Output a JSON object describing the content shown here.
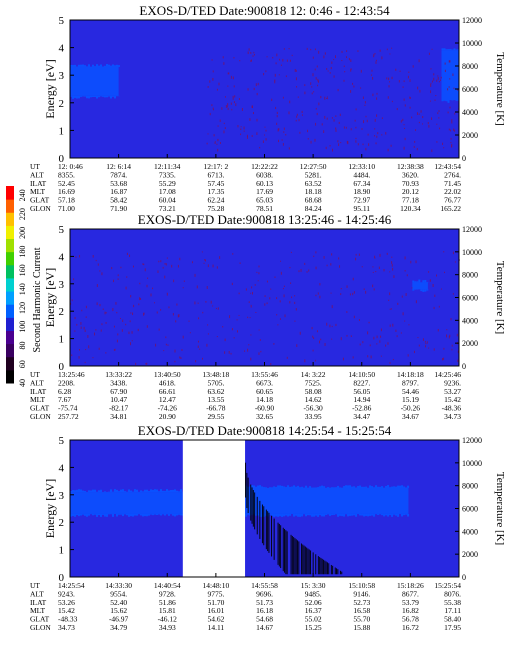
{
  "colorbar": {
    "label": "Second Harmonic Current",
    "ticks": [
      "40",
      "60",
      "80",
      "100",
      "120",
      "140",
      "160",
      "180",
      "200",
      "220",
      "240"
    ],
    "min": 40,
    "max": 250,
    "colors": [
      "#000000",
      "#200020",
      "#3a0060",
      "#4a0090",
      "#2020d0",
      "#0060ff",
      "#00a0ff",
      "#00d0d0",
      "#00c060",
      "#40d000",
      "#a0e000",
      "#f0f000",
      "#ffc000",
      "#ff6000",
      "#ff0000"
    ]
  },
  "chart_data": [
    {
      "type": "heatmap",
      "title": "EXOS-D/TED   Date:900818   12: 0:46 - 12:43:54",
      "ylabel": "Energy [eV]",
      "y2label": "Temperature [K]",
      "ylim": [
        0,
        5
      ],
      "yticks": [
        "0",
        "1",
        "2",
        "3",
        "4",
        "5"
      ],
      "y2lim": [
        0,
        12000
      ],
      "y2ticks": [
        "0",
        "2000",
        "4000",
        "6000",
        "8000",
        "10000",
        "12000"
      ],
      "background_color": "#2828e0",
      "features": [
        {
          "kind": "band",
          "t": [
            0,
            0.125
          ],
          "e": [
            2.25,
            3.3
          ],
          "color": "#0a50ff"
        },
        {
          "kind": "band",
          "t": [
            0.955,
            1.0
          ],
          "e": [
            2.1,
            3.9
          ],
          "color": "#0a50ff"
        },
        {
          "kind": "speckle",
          "t": [
            0.35,
            1.0
          ],
          "e": [
            0.3,
            4.0
          ],
          "density": 0.55,
          "color": "#7a1060"
        }
      ],
      "xaxis": {
        "row_labels": [
          "UT",
          "ALT",
          "ILAT",
          "MLT",
          "GLAT",
          "GLON"
        ],
        "columns": [
          [
            "12: 0:46",
            "8355.",
            "52.45",
            "16.69",
            "57.18",
            "71.00"
          ],
          [
            "12: 6:14",
            "7874.",
            "53.68",
            "16.87",
            "58.42",
            "71.90"
          ],
          [
            "12:11:34",
            "7335.",
            "55.29",
            "17.08",
            "60.04",
            "73.21"
          ],
          [
            "12:17: 2",
            "6713.",
            "57.45",
            "17.35",
            "62.24",
            "75.28"
          ],
          [
            "12:22:22",
            "6038.",
            "60.13",
            "17.69",
            "65.03",
            "78.51"
          ],
          [
            "12:27:50",
            "5281.",
            "63.52",
            "18.18",
            "68.68",
            "84.24"
          ],
          [
            "12:33:10",
            "4484.",
            "67.34",
            "18.90",
            "72.97",
            "95.11"
          ],
          [
            "12:38:38",
            "3620.",
            "70.93",
            "20.12",
            "77.18",
            "120.34"
          ],
          [
            "12:43:54",
            "2764.",
            "71.45",
            "22.02",
            "76.77",
            "165.22"
          ]
        ]
      }
    },
    {
      "type": "heatmap",
      "title": "EXOS-D/TED   Date:900818   13:25:46 - 14:25:46",
      "ylabel": "Energy [eV]",
      "y2label": "Temperature [K]",
      "ylim": [
        0,
        5
      ],
      "yticks": [
        "0",
        "1",
        "2",
        "3",
        "4",
        "5"
      ],
      "y2lim": [
        0,
        12000
      ],
      "y2ticks": [
        "0",
        "2000",
        "4000",
        "6000",
        "8000",
        "10000",
        "12000"
      ],
      "background_color": "#2828e0",
      "features": [
        {
          "kind": "speckle",
          "t": [
            0.0,
            1.0
          ],
          "e": [
            0.1,
            4.2
          ],
          "density": 0.35,
          "color": "#7a1060"
        },
        {
          "kind": "band",
          "t": [
            0.88,
            0.92
          ],
          "e": [
            2.8,
            3.05
          ],
          "color": "#0a50ff"
        }
      ],
      "xaxis": {
        "row_labels": [
          "UT",
          "ALT",
          "ILAT",
          "MLT",
          "GLAT",
          "GLON"
        ],
        "columns": [
          [
            "13:25:46",
            "2208.",
            "6.28",
            "7.67",
            "-75.74",
            "257.72"
          ],
          [
            "13:33:22",
            "3438.",
            "67.90",
            "10.47",
            "-82.17",
            "34.81"
          ],
          [
            "13:40:50",
            "4618.",
            "66.61",
            "12.47",
            "-74.26",
            "20.90"
          ],
          [
            "13:48:18",
            "5705.",
            "63.62",
            "13.55",
            "-66.78",
            "29.55"
          ],
          [
            "13:55:46",
            "6673.",
            "60.65",
            "14.18",
            "-60.90",
            "32.65"
          ],
          [
            "14: 3:22",
            "7525.",
            "58.08",
            "14.62",
            "-56.30",
            "33.95"
          ],
          [
            "14:10:50",
            "8227.",
            "56.05",
            "14.94",
            "-52.86",
            "34.47"
          ],
          [
            "14:18:18",
            "8797.",
            "54.46",
            "15.19",
            "-50.26",
            "34.67"
          ],
          [
            "14:25:46",
            "9236.",
            "53.27",
            "15.42",
            "-48.36",
            "34.73"
          ]
        ]
      }
    },
    {
      "type": "heatmap",
      "title": "EXOS-D/TED   Date:900818   14:25:54 - 15:25:54",
      "ylabel": "Energy [eV]",
      "y2label": "Temperature [K]",
      "ylim": [
        0,
        5
      ],
      "yticks": [
        "0",
        "1",
        "2",
        "3",
        "4",
        "5"
      ],
      "y2lim": [
        0,
        12000
      ],
      "y2ticks": [
        "0",
        "2000",
        "4000",
        "6000",
        "8000",
        "10000",
        "12000"
      ],
      "background_color": "#2828e0",
      "features": [
        {
          "kind": "band",
          "t": [
            0.0,
            0.29
          ],
          "e": [
            2.3,
            3.1
          ],
          "color": "#0a50ff"
        },
        {
          "kind": "band",
          "t": [
            0.45,
            0.87
          ],
          "e": [
            2.3,
            3.25
          ],
          "color": "#0a50ff"
        },
        {
          "kind": "gap",
          "t": [
            0.29,
            0.45
          ]
        },
        {
          "kind": "dispersion",
          "t": [
            0.45,
            0.7
          ],
          "e_start": 4.1,
          "e_end": 0.1,
          "color": "#000000"
        }
      ],
      "xaxis": {
        "row_labels": [
          "UT",
          "ALT",
          "ILAT",
          "MLT",
          "GLAT",
          "GLON"
        ],
        "columns": [
          [
            "14:25:54",
            "9243.",
            "53.26",
            "15.42",
            "-48.33",
            "34.73"
          ],
          [
            "14:33:30",
            "9554.",
            "52.40",
            "15.62",
            "-46.97",
            "34.79"
          ],
          [
            "14:40:54",
            "9728.",
            "51.86",
            "15.81",
            "-46.12",
            "34.93"
          ],
          [
            "14:48:10",
            "9775.",
            "51.70",
            "16.01",
            "54.62",
            "14.11"
          ],
          [
            "14:55:58",
            "9696.",
            "51.73",
            "16.18",
            "54.68",
            "14.67"
          ],
          [
            "15: 3:30",
            "9485.",
            "52.06",
            "16.37",
            "55.02",
            "15.25"
          ],
          [
            "15:10:58",
            "9146.",
            "52.73",
            "16.58",
            "55.70",
            "15.88"
          ],
          [
            "15:18:26",
            "8677.",
            "53.79",
            "16.82",
            "56.78",
            "16.72"
          ],
          [
            "15:25:54",
            "8076.",
            "55.38",
            "17.11",
            "58.40",
            "17.95"
          ]
        ]
      }
    }
  ]
}
